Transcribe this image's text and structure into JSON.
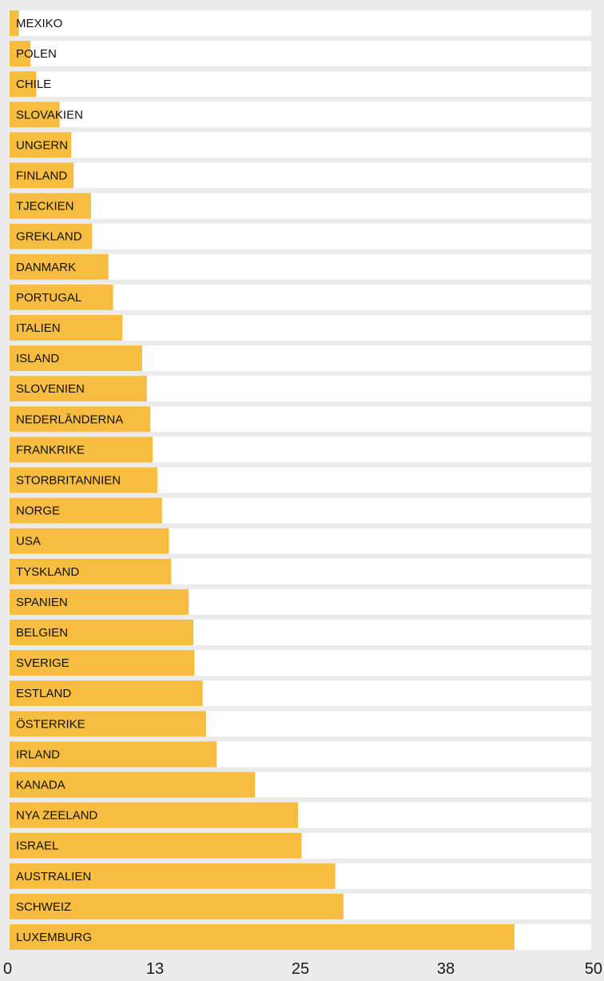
{
  "chart_data": {
    "type": "bar",
    "orientation": "horizontal",
    "categories": [
      "MEXIKO",
      "POLEN",
      "CHILE",
      "SLOVAKIEN",
      "UNGERN",
      "FINLAND",
      "TJECKIEN",
      "GREKLAND",
      "DANMARK",
      "PORTUGAL",
      "ITALIEN",
      "ISLAND",
      "SLOVENIEN",
      "NEDERLÄNDERNA",
      "FRANKRIKE",
      "STORBRITANNIEN",
      "NORGE",
      "USA",
      "TYSKLAND",
      "SPANIEN",
      "BELGIEN",
      "SVERIGE",
      "ESTLAND",
      "ÖSTERRIKE",
      "IRLAND",
      "KANADA",
      "NYA ZEELAND",
      "ISRAEL",
      "AUSTRALIEN",
      "SCHWEIZ",
      "LUXEMBURG"
    ],
    "values": [
      0.8,
      1.8,
      2.3,
      4.3,
      5.3,
      5.5,
      7.0,
      7.1,
      8.5,
      8.9,
      9.7,
      11.4,
      11.8,
      12.1,
      12.3,
      12.7,
      13.1,
      13.7,
      13.9,
      15.4,
      15.8,
      15.9,
      16.6,
      16.9,
      17.8,
      21.1,
      24.8,
      25.1,
      28.0,
      28.7,
      43.4
    ],
    "xlim": [
      0,
      50
    ],
    "x_ticks": [
      "0",
      "13",
      "25",
      "38",
      "50"
    ],
    "title": "",
    "xlabel": "",
    "ylabel": "",
    "grid": false,
    "bar_color": "#f7bd41",
    "row_background": "#ffffff",
    "page_background": "#ebebeb"
  }
}
